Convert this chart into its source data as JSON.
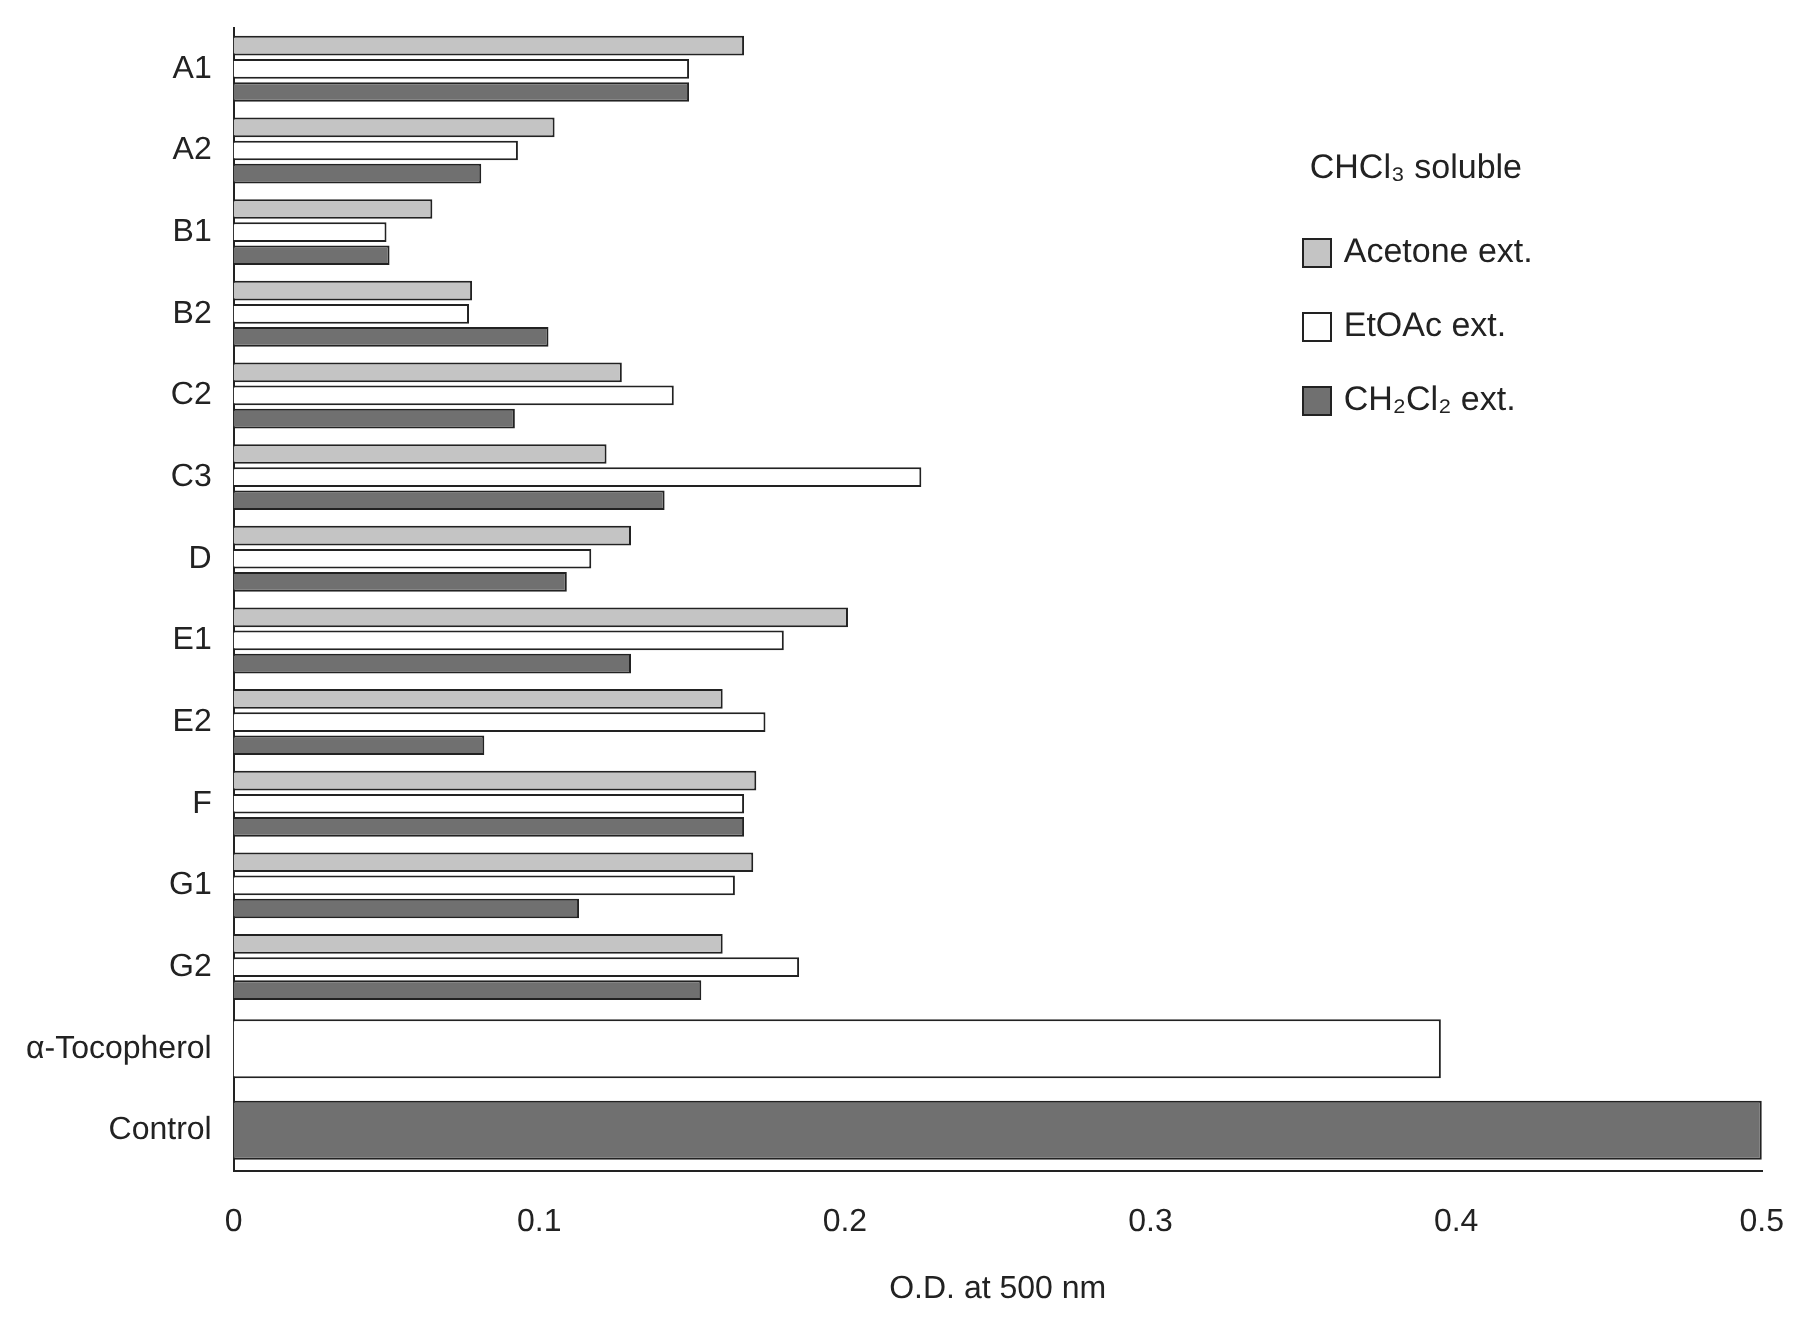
{
  "chart_data": {
    "type": "bar",
    "orientation": "horizontal",
    "xlabel": "O.D. at 500 nm",
    "legend_title": "CHCl₃ soluble",
    "legend": "top right",
    "grid": false,
    "categories": [
      "A1",
      "A2",
      "B1",
      "B2",
      "C2",
      "C3",
      "D",
      "E1",
      "E2",
      "F",
      "G1",
      "G2",
      "α-Tocopherol",
      "Control"
    ],
    "series": [
      {
        "name": "Acetone ext.",
        "color": "#c4c4c4",
        "values": [
          0.167,
          0.105,
          0.065,
          0.078,
          0.127,
          0.122,
          0.13,
          0.201,
          0.16,
          0.171,
          0.17,
          0.16,
          null,
          null
        ]
      },
      {
        "name": "EtOAc ext.",
        "color": "#ffffff",
        "values": [
          0.149,
          0.093,
          0.05,
          0.077,
          0.144,
          0.225,
          0.117,
          0.18,
          0.174,
          0.167,
          0.164,
          0.185,
          null,
          null
        ]
      },
      {
        "name": "CH₂Cl₂ ext.",
        "color": "#707070",
        "values": [
          0.149,
          0.081,
          0.051,
          0.103,
          0.092,
          0.141,
          0.109,
          0.13,
          0.082,
          0.167,
          0.113,
          0.153,
          null,
          null
        ]
      },
      {
        "colors": [
          null,
          null,
          null,
          null,
          null,
          null,
          null,
          null,
          null,
          null,
          null,
          null,
          "#ffffff",
          "#707070"
        ],
        "values": [
          null,
          null,
          null,
          null,
          null,
          null,
          null,
          null,
          null,
          null,
          null,
          null,
          0.395,
          0.5
        ]
      }
    ],
    "xlim": [
      0,
      0.5
    ],
    "xticks": [
      0,
      0.1,
      0.2,
      0.3,
      0.4,
      0.5
    ]
  }
}
